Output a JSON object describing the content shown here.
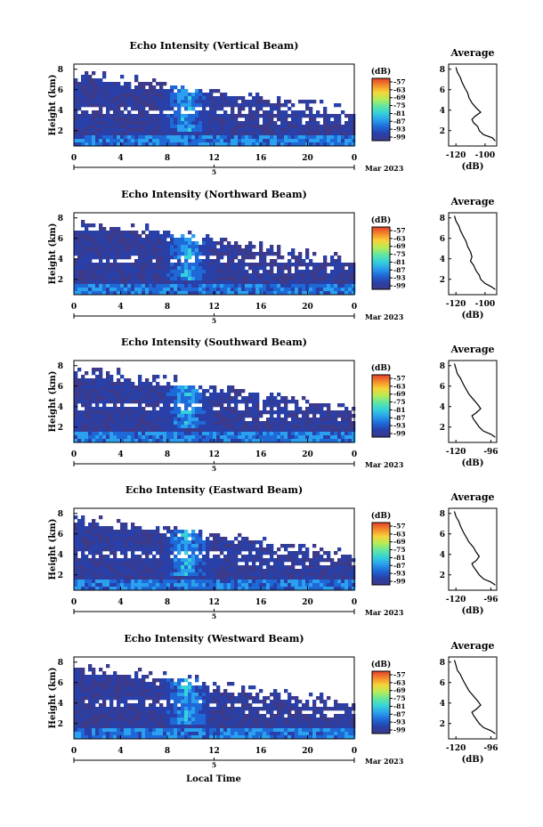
{
  "figure": {
    "common_x_label": "Local Time",
    "date_label": "Mar 2023",
    "date_tick_label": "5"
  },
  "colormap": {
    "stops": [
      "#3d3a8a",
      "#2840a8",
      "#1f68d8",
      "#2aa0ee",
      "#35d2d8",
      "#62e6a0",
      "#b6ec56",
      "#f6d43a",
      "#f58a2a",
      "#e0402c"
    ],
    "ticks": [
      "-57",
      "-63",
      "-69",
      "-75",
      "-81",
      "-87",
      "-93",
      "-99"
    ],
    "unit_label": "(dB)"
  },
  "chart_data": [
    {
      "type": "heatmap",
      "title": "Echo Intensity (Vertical Beam)",
      "xlabel": "",
      "ylabel": "Height (km)",
      "x_ticks": [
        "0",
        "4",
        "8",
        "12",
        "16",
        "20",
        "0"
      ],
      "xlim": [
        0,
        24
      ],
      "y_ticks": [
        "2",
        "4",
        "6",
        "8"
      ],
      "ylim": [
        0.5,
        8.5
      ],
      "color_unit": "(dB)",
      "color_ticks": [
        "-57",
        "-63",
        "-69",
        "-75",
        "-81",
        "-87",
        "-93",
        "-99"
      ],
      "profile": {
        "type": "line",
        "title": "Average",
        "xlabel": "(dB)",
        "x_ticks": [
          "-120",
          "-100"
        ],
        "xlim": [
          -125,
          -92
        ],
        "ylim": [
          0.5,
          8.5
        ],
        "y_ticks": [
          "2",
          "4",
          "6",
          "8"
        ],
        "x": [
          -93,
          -95,
          -101,
          -104,
          -105,
          -108,
          -109,
          -107,
          -103,
          -106,
          -109,
          -111,
          -112,
          -114,
          -116,
          -117,
          -119,
          -120
        ],
        "y": [
          1.0,
          1.3,
          1.6,
          2.0,
          2.4,
          2.8,
          3.1,
          3.4,
          3.8,
          4.2,
          4.7,
          5.2,
          5.7,
          6.2,
          6.8,
          7.2,
          7.7,
          8.2
        ]
      }
    },
    {
      "type": "heatmap",
      "title": "Echo Intensity (Northward Beam)",
      "xlabel": "",
      "ylabel": "Height (km)",
      "x_ticks": [
        "0",
        "4",
        "8",
        "12",
        "16",
        "20",
        "0"
      ],
      "xlim": [
        0,
        24
      ],
      "y_ticks": [
        "2",
        "4",
        "6",
        "8"
      ],
      "ylim": [
        0.5,
        8.5
      ],
      "color_unit": "(dB)",
      "color_ticks": [
        "-57",
        "-63",
        "-69",
        "-75",
        "-81",
        "-87",
        "-93",
        "-99"
      ],
      "profile": {
        "type": "line",
        "title": "Average",
        "xlabel": "(dB)",
        "x_ticks": [
          "-120",
          "-100"
        ],
        "xlim": [
          -125,
          -92
        ],
        "ylim": [
          0.5,
          8.5
        ],
        "y_ticks": [
          "2",
          "4",
          "6",
          "8"
        ],
        "x": [
          -93,
          -96,
          -100,
          -103,
          -104,
          -106,
          -107,
          -108,
          -110,
          -109,
          -110,
          -112,
          -113,
          -115,
          -117,
          -118,
          -120,
          -121
        ],
        "y": [
          1.0,
          1.3,
          1.6,
          2.0,
          2.4,
          2.8,
          3.1,
          3.4,
          3.8,
          4.2,
          4.7,
          5.2,
          5.7,
          6.2,
          6.8,
          7.2,
          7.7,
          8.2
        ]
      }
    },
    {
      "type": "heatmap",
      "title": "Echo Intensity (Southward Beam)",
      "xlabel": "",
      "ylabel": "Height (km)",
      "x_ticks": [
        "0",
        "4",
        "8",
        "12",
        "16",
        "20",
        "0"
      ],
      "xlim": [
        0,
        24
      ],
      "y_ticks": [
        "2",
        "4",
        "6",
        "8"
      ],
      "ylim": [
        0.5,
        8.5
      ],
      "color_unit": "(dB)",
      "color_ticks": [
        "-57",
        "-63",
        "-69",
        "-75",
        "-81",
        "-87",
        "-93",
        "-99"
      ],
      "profile": {
        "type": "line",
        "title": "Average",
        "xlabel": "(dB)",
        "x_ticks": [
          "-120",
          "-96"
        ],
        "xlim": [
          -125,
          -92
        ],
        "ylim": [
          0.5,
          8.5
        ],
        "y_ticks": [
          "2",
          "4",
          "6",
          "8"
        ],
        "x": [
          -93,
          -96,
          -101,
          -104,
          -106,
          -108,
          -109,
          -106,
          -103,
          -105,
          -108,
          -111,
          -113,
          -115,
          -117,
          -119,
          -120,
          -121
        ],
        "y": [
          1.0,
          1.3,
          1.6,
          2.0,
          2.4,
          2.8,
          3.1,
          3.4,
          3.8,
          4.2,
          4.7,
          5.2,
          5.7,
          6.2,
          6.8,
          7.2,
          7.7,
          8.2
        ]
      }
    },
    {
      "type": "heatmap",
      "title": "Echo Intensity (Eastward Beam)",
      "xlabel": "",
      "ylabel": "Height (km)",
      "x_ticks": [
        "0",
        "4",
        "8",
        "12",
        "16",
        "20",
        "0"
      ],
      "xlim": [
        0,
        24
      ],
      "y_ticks": [
        "2",
        "4",
        "6",
        "8"
      ],
      "ylim": [
        0.5,
        8.5
      ],
      "color_unit": "(dB)",
      "color_ticks": [
        "-57",
        "-63",
        "-69",
        "-75",
        "-81",
        "-87",
        "-93",
        "-99"
      ],
      "profile": {
        "type": "line",
        "title": "Average",
        "xlabel": "(dB)",
        "x_ticks": [
          "-120",
          "-96"
        ],
        "xlim": [
          -125,
          -92
        ],
        "ylim": [
          0.5,
          8.5
        ],
        "y_ticks": [
          "2",
          "4",
          "6",
          "8"
        ],
        "x": [
          -93,
          -96,
          -101,
          -104,
          -106,
          -108,
          -109,
          -106,
          -104,
          -106,
          -108,
          -111,
          -113,
          -115,
          -117,
          -118,
          -120,
          -121
        ],
        "y": [
          1.0,
          1.3,
          1.6,
          2.0,
          2.4,
          2.8,
          3.1,
          3.4,
          3.8,
          4.2,
          4.7,
          5.2,
          5.7,
          6.2,
          6.8,
          7.2,
          7.7,
          8.2
        ]
      }
    },
    {
      "type": "heatmap",
      "title": "Echo Intensity (Westward Beam)",
      "xlabel": "Local Time",
      "ylabel": "Height (km)",
      "x_ticks": [
        "0",
        "4",
        "8",
        "12",
        "16",
        "20",
        "0"
      ],
      "xlim": [
        0,
        24
      ],
      "y_ticks": [
        "2",
        "4",
        "6",
        "8"
      ],
      "ylim": [
        0.5,
        8.5
      ],
      "color_unit": "(dB)",
      "color_ticks": [
        "-57",
        "-63",
        "-69",
        "-75",
        "-81",
        "-87",
        "-93",
        "-99"
      ],
      "profile": {
        "type": "line",
        "title": "Average",
        "xlabel": "(dB)",
        "x_ticks": [
          "-120",
          "-96"
        ],
        "xlim": [
          -125,
          -92
        ],
        "ylim": [
          0.5,
          8.5
        ],
        "y_ticks": [
          "2",
          "4",
          "6",
          "8"
        ],
        "x": [
          -93,
          -96,
          -101,
          -104,
          -106,
          -108,
          -109,
          -106,
          -103,
          -105,
          -108,
          -111,
          -113,
          -115,
          -117,
          -119,
          -120,
          -121
        ],
        "y": [
          1.0,
          1.3,
          1.6,
          2.0,
          2.4,
          2.8,
          3.1,
          3.4,
          3.8,
          4.2,
          4.7,
          5.2,
          5.7,
          6.2,
          6.8,
          7.2,
          7.7,
          8.2
        ]
      }
    }
  ]
}
